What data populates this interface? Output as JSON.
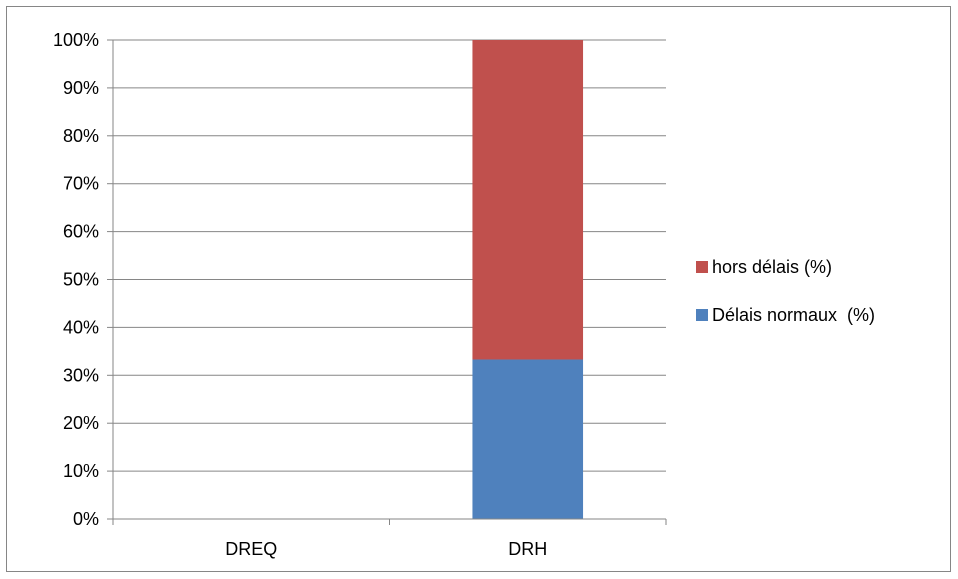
{
  "chart_data": {
    "type": "bar",
    "stacked": true,
    "percent_stacked": true,
    "title": "",
    "xlabel": "",
    "ylabel": "",
    "categories": [
      "DREQ",
      "DRH"
    ],
    "series": [
      {
        "name": "Délais normaux  (%)",
        "values": [
          0,
          33.3
        ],
        "color": "#4f81bd"
      },
      {
        "name": "hors délais (%)",
        "values": [
          0,
          66.7
        ],
        "color": "#c0504d"
      }
    ],
    "ylim": [
      0,
      100
    ],
    "y_ticks": [
      "0%",
      "10%",
      "20%",
      "30%",
      "40%",
      "50%",
      "60%",
      "70%",
      "80%",
      "90%",
      "100%"
    ],
    "grid": true,
    "legend_position": "right",
    "legend_order": [
      "hors délais (%)",
      "Délais normaux  (%)"
    ]
  }
}
